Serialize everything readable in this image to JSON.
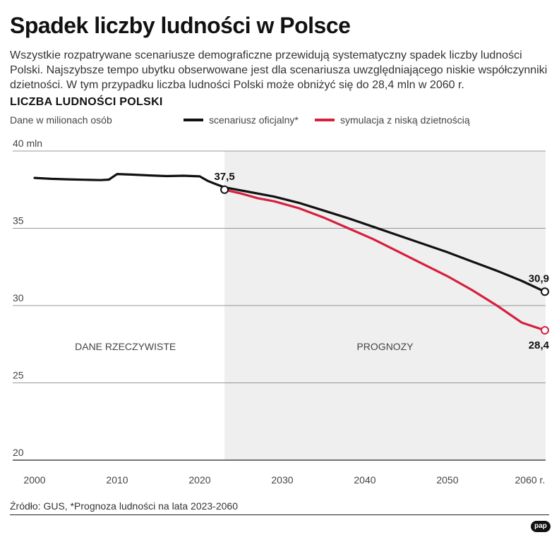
{
  "header": {
    "title": "Spadek liczby ludności w Polsce",
    "lead": "Wszystkie rozpatrywane scenariusze demograficzne przewidują systematyczny spadek liczby ludności Polski. Najszybsze tempo ubytku obserwowane jest dla scenariusza uwzględniającego niskie współczynniki dzietności. W tym przypadku liczba ludności Polski może obniżyć się do 28,4 mln w 2060 r."
  },
  "chart_data": {
    "type": "line",
    "title": "LICZBA LUDNOŚCI POLSKI",
    "ylabel": "Dane w milionach osób",
    "xlabel": "",
    "ylim": [
      20,
      40
    ],
    "xlim": [
      1999,
      2062
    ],
    "grid": true,
    "y_ticks": [
      {
        "value": 40,
        "label": "40 mln"
      },
      {
        "value": 35,
        "label": "35"
      },
      {
        "value": 30,
        "label": "30"
      },
      {
        "value": 25,
        "label": "25"
      },
      {
        "value": 20,
        "label": "20"
      }
    ],
    "x_ticks": [
      {
        "value": 2000,
        "label": "2000"
      },
      {
        "value": 2010,
        "label": "2010"
      },
      {
        "value": 2020,
        "label": "2020"
      },
      {
        "value": 2030,
        "label": "2030"
      },
      {
        "value": 2040,
        "label": "2040"
      },
      {
        "value": 2050,
        "label": "2050"
      },
      {
        "value": 2060,
        "label": "2060 r."
      }
    ],
    "regions": [
      {
        "label": "DANE RZECZYWISTE",
        "from": 1999,
        "to": 2023,
        "color": "#ffffff"
      },
      {
        "label": "PROGNOZY",
        "from": 2023,
        "to": 2062,
        "color": "#efefef"
      }
    ],
    "series": [
      {
        "name": "scenariusz oficjalny*",
        "color": "#111111",
        "x": [
          2000,
          2002,
          2004,
          2006,
          2008,
          2009,
          2010,
          2012,
          2014,
          2016,
          2018,
          2020,
          2021,
          2022,
          2023,
          2026,
          2029,
          2032,
          2035,
          2038,
          2041,
          2044,
          2047,
          2050,
          2053,
          2056,
          2059,
          2061.8
        ],
        "values": [
          38.26,
          38.2,
          38.17,
          38.14,
          38.12,
          38.15,
          38.51,
          38.47,
          38.42,
          38.38,
          38.4,
          38.36,
          38.06,
          37.85,
          37.65,
          37.35,
          37.05,
          36.65,
          36.15,
          35.65,
          35.1,
          34.55,
          34.0,
          33.45,
          32.85,
          32.25,
          31.6,
          30.9
        ]
      },
      {
        "name": "symulacja z niską dzietnością",
        "color": "#d5203f",
        "x": [
          2023,
          2025,
          2027,
          2029,
          2032,
          2035,
          2038,
          2041,
          2044,
          2047,
          2050,
          2053,
          2056,
          2059,
          2061.8
        ],
        "values": [
          37.5,
          37.25,
          36.95,
          36.75,
          36.3,
          35.7,
          35.0,
          34.3,
          33.5,
          32.7,
          31.9,
          31.0,
          30.0,
          28.9,
          28.4
        ]
      }
    ],
    "annotations": [
      {
        "text": "37,5",
        "x": 2023,
        "y": 37.5,
        "placement": "above"
      },
      {
        "text": "30,9",
        "x": 2061.8,
        "y": 30.9,
        "placement": "above"
      },
      {
        "text": "28,4",
        "x": 2061.8,
        "y": 28.4,
        "placement": "below"
      }
    ]
  },
  "footer": {
    "source": "Źródło: GUS, *Prognoza ludności na lata 2023-2060",
    "logo_text": "pap"
  }
}
